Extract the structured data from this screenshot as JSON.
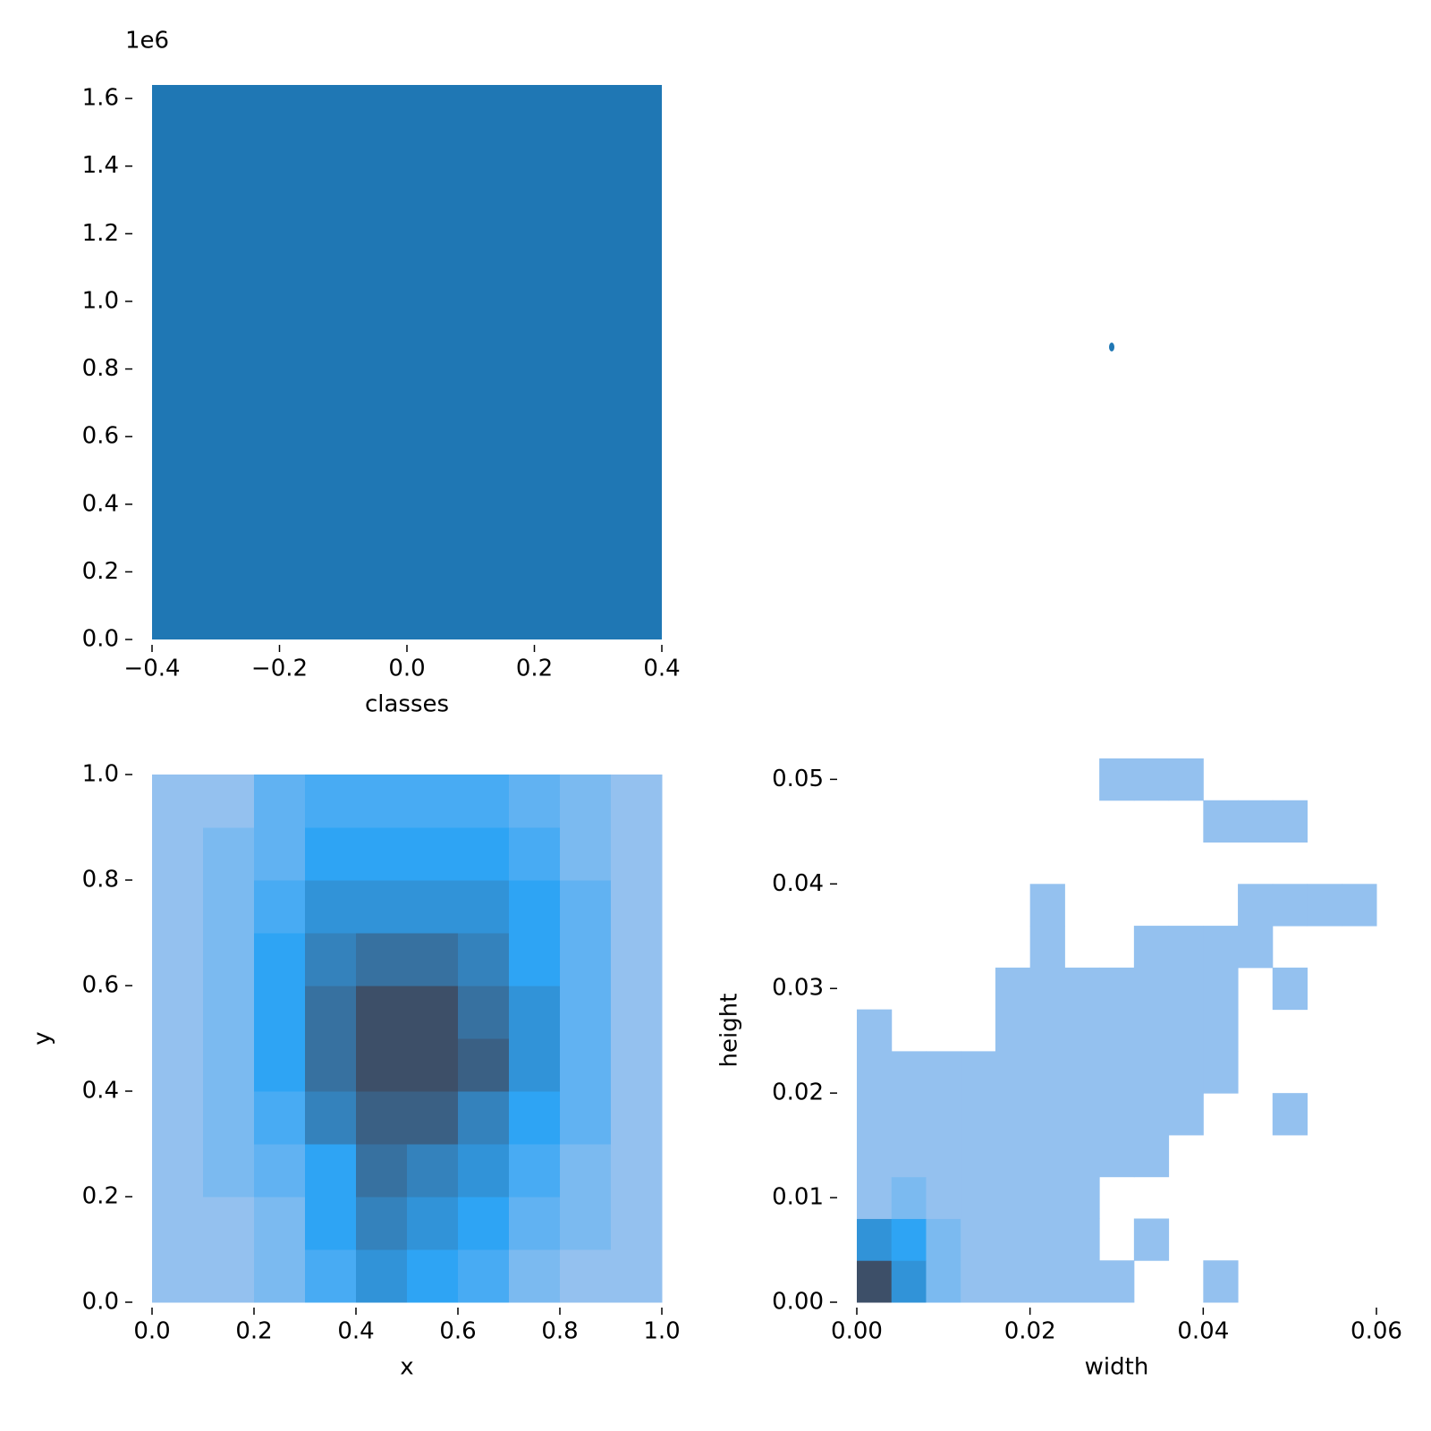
{
  "chart_data": [
    {
      "type": "histogram",
      "xlabel": "classes",
      "offset_label": "1e6",
      "color": "#1f77b4",
      "bins": [
        -0.4,
        0.4
      ],
      "values": [
        1.64
      ],
      "xlim": [
        -0.4,
        0.4
      ],
      "ylim": [
        0,
        1.64
      ],
      "xticks": [
        {
          "value": -0.4,
          "label": "−0.4"
        },
        {
          "value": -0.2,
          "label": "−0.2"
        },
        {
          "value": 0,
          "label": "0.0"
        },
        0.2,
        0.4
      ],
      "yticks": [
        {
          "value": 0,
          "label": "0.0"
        },
        0.2,
        0.4,
        0.6,
        0.8,
        {
          "value": 1,
          "label": "1.0"
        },
        1.2,
        1.4,
        1.6
      ]
    },
    {
      "type": "heatmap",
      "xlabel": "x",
      "ylabel": "y",
      "colors": [
        "#aec8ee",
        "#2ea4f4",
        "#3d4f68"
      ],
      "xbins": [
        0,
        0.1,
        0.2,
        0.3,
        0.4,
        0.5,
        0.6,
        0.7,
        0.8,
        0.9,
        1
      ],
      "ybins": [
        0,
        0.1,
        0.2,
        0.3,
        0.4,
        0.5,
        0.6,
        0.7,
        0.8,
        0.9,
        1
      ],
      "values": [
        [
          1,
          1,
          2,
          4,
          6,
          5,
          4,
          2,
          1,
          1
        ],
        [
          1,
          1,
          2,
          5,
          7,
          6,
          5,
          3,
          2,
          1
        ],
        [
          1,
          2,
          3,
          5,
          8,
          7,
          6,
          4,
          2,
          1
        ],
        [
          1,
          2,
          4,
          7,
          9,
          9,
          7,
          5,
          3,
          1
        ],
        [
          1,
          2,
          5,
          8,
          10,
          10,
          9,
          6,
          3,
          1
        ],
        [
          1,
          2,
          5,
          8,
          10,
          10,
          8,
          6,
          3,
          1
        ],
        [
          1,
          2,
          5,
          7,
          8,
          8,
          7,
          5,
          3,
          1
        ],
        [
          1,
          2,
          4,
          6,
          6,
          6,
          6,
          5,
          3,
          1
        ],
        [
          1,
          2,
          3,
          5,
          5,
          5,
          5,
          4,
          2,
          1
        ],
        [
          1,
          1,
          3,
          4,
          4,
          4,
          4,
          3,
          2,
          1
        ]
      ],
      "xlim": [
        0,
        1
      ],
      "ylim": [
        0,
        1
      ],
      "xticks": [
        {
          "value": 0,
          "label": "0.0"
        },
        0.2,
        0.4,
        0.6,
        0.8,
        {
          "value": 1,
          "label": "1.0"
        }
      ],
      "yticks": [
        {
          "value": 0,
          "label": "0.0"
        },
        0.2,
        0.4,
        0.6,
        0.8,
        {
          "value": 1,
          "label": "1.0"
        }
      ]
    },
    {
      "type": "heatmap",
      "xlabel": "width",
      "ylabel": "height",
      "colors": [
        "#aec8ee",
        "#2ea4f4",
        "#3d4f68"
      ],
      "xbins": [
        0,
        0.004,
        0.008,
        0.012,
        0.016,
        0.02,
        0.024,
        0.028,
        0.032,
        0.036,
        0.04,
        0.044,
        0.048,
        0.052,
        0.056,
        0.06
      ],
      "ybins": [
        0,
        0.004,
        0.008,
        0.012,
        0.016,
        0.02,
        0.024,
        0.028,
        0.032,
        0.036,
        0.04,
        0.044,
        0.048,
        0.052
      ],
      "values": [
        [
          10,
          6,
          2,
          1,
          1,
          1,
          1,
          1,
          null,
          null,
          1,
          null,
          null,
          null,
          null
        ],
        [
          6,
          5,
          2,
          1,
          1,
          1,
          1,
          null,
          1,
          null,
          null,
          null,
          null,
          null,
          null
        ],
        [
          1,
          2,
          1,
          1,
          1,
          1,
          1,
          null,
          null,
          null,
          null,
          null,
          null,
          null,
          null
        ],
        [
          1,
          1,
          1,
          1,
          1,
          1,
          1,
          1,
          1,
          null,
          null,
          null,
          null,
          null,
          null
        ],
        [
          1,
          1,
          1,
          1,
          1,
          1,
          1,
          1,
          1,
          1,
          null,
          null,
          1,
          null,
          null
        ],
        [
          1,
          1,
          1,
          1,
          1,
          1,
          1,
          1,
          1,
          1,
          1,
          null,
          null,
          null,
          null
        ],
        [
          1,
          null,
          null,
          null,
          1,
          1,
          1,
          1,
          1,
          1,
          1,
          null,
          null,
          null,
          null
        ],
        [
          null,
          null,
          null,
          null,
          1,
          1,
          1,
          1,
          1,
          1,
          1,
          null,
          1,
          null,
          null
        ],
        [
          null,
          null,
          null,
          null,
          null,
          1,
          null,
          null,
          1,
          1,
          1,
          1,
          null,
          null,
          null
        ],
        [
          null,
          null,
          null,
          null,
          null,
          1,
          null,
          null,
          null,
          null,
          null,
          1,
          1,
          1,
          1
        ],
        [
          null,
          null,
          null,
          null,
          null,
          null,
          null,
          null,
          null,
          null,
          null,
          null,
          null,
          null,
          null
        ],
        [
          null,
          null,
          null,
          null,
          null,
          null,
          null,
          null,
          null,
          null,
          1,
          1,
          1,
          null,
          null
        ],
        [
          null,
          null,
          null,
          null,
          null,
          null,
          null,
          1,
          1,
          1,
          null,
          null,
          null,
          null,
          null
        ]
      ],
      "xlim": [
        0,
        0.06
      ],
      "ylim": [
        0,
        0.052
      ],
      "xticks": [
        {
          "value": 0,
          "label": "0.00"
        },
        {
          "value": 0.02,
          "label": "0.02"
        },
        {
          "value": 0.04,
          "label": "0.04"
        },
        {
          "value": 0.06,
          "label": "0.06"
        }
      ],
      "yticks": [
        {
          "value": 0,
          "label": "0.00"
        },
        {
          "value": 0.01,
          "label": "0.01"
        },
        {
          "value": 0.02,
          "label": "0.02"
        },
        {
          "value": 0.03,
          "label": "0.03"
        },
        {
          "value": 0.04,
          "label": "0.04"
        },
        {
          "value": 0.05,
          "label": "0.05"
        }
      ]
    }
  ]
}
